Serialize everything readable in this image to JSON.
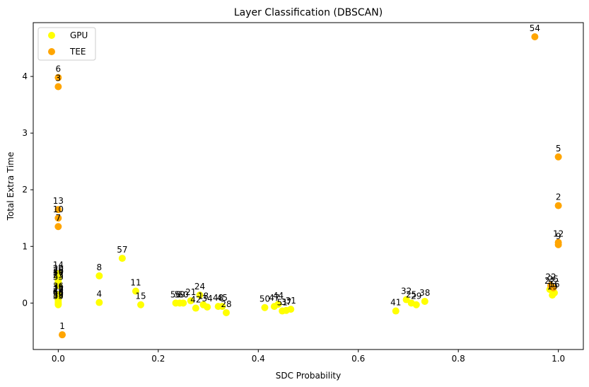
{
  "chart_data": {
    "type": "scatter",
    "title": "Layer Classification (DBSCAN)",
    "xlabel": "SDC Probability",
    "ylabel": "Total Extra Time",
    "xlim": [
      -0.05,
      1.05
    ],
    "ylim": [
      -0.82,
      4.95
    ],
    "xticks": [
      0.0,
      0.2,
      0.4,
      0.6,
      0.8,
      1.0
    ],
    "xtick_labels": [
      "0.0",
      "0.2",
      "0.4",
      "0.6",
      "0.8",
      "1.0"
    ],
    "yticks": [
      0,
      1,
      2,
      3,
      4
    ],
    "ytick_labels": [
      "0",
      "1",
      "2",
      "3",
      "4"
    ],
    "grid": false,
    "legend_position": "top-left",
    "series": [
      {
        "name": "GPU",
        "color": "#ffff00",
        "points": [
          {
            "x": 0.0,
            "y": 0.52,
            "label": "14"
          },
          {
            "x": 0.0,
            "y": 0.46,
            "label": "20"
          },
          {
            "x": 0.0,
            "y": 0.43,
            "label": "26"
          },
          {
            "x": 0.0,
            "y": 0.4,
            "label": "30"
          },
          {
            "x": 0.0,
            "y": 0.37,
            "label": "17"
          },
          {
            "x": 0.0,
            "y": 0.34,
            "label": "23"
          },
          {
            "x": 0.0,
            "y": 0.31,
            "label": "53"
          },
          {
            "x": 0.0,
            "y": 0.15,
            "label": "36"
          },
          {
            "x": 0.0,
            "y": 0.12,
            "label": "35"
          },
          {
            "x": 0.0,
            "y": 0.09,
            "label": "27"
          },
          {
            "x": 0.0,
            "y": 0.07,
            "label": "49"
          },
          {
            "x": 0.0,
            "y": 0.04,
            "label": "46"
          },
          {
            "x": 0.0,
            "y": 0.01,
            "label": "52"
          },
          {
            "x": 0.0,
            "y": -0.01,
            "label": "39"
          },
          {
            "x": 0.0,
            "y": -0.03,
            "label": "55"
          },
          {
            "x": 0.082,
            "y": 0.48,
            "label": "8"
          },
          {
            "x": 0.082,
            "y": 0.01,
            "label": "4"
          },
          {
            "x": 0.128,
            "y": 0.79,
            "label": "57"
          },
          {
            "x": 0.155,
            "y": 0.21,
            "label": "11"
          },
          {
            "x": 0.165,
            "y": -0.03,
            "label": "15"
          },
          {
            "x": 0.235,
            "y": 0.0,
            "label": "56"
          },
          {
            "x": 0.243,
            "y": 0.0,
            "label": "59"
          },
          {
            "x": 0.25,
            "y": 0.0,
            "label": "60"
          },
          {
            "x": 0.265,
            "y": 0.04,
            "label": "21"
          },
          {
            "x": 0.275,
            "y": -0.09,
            "label": "42"
          },
          {
            "x": 0.283,
            "y": 0.14,
            "label": "24"
          },
          {
            "x": 0.29,
            "y": -0.03,
            "label": "18"
          },
          {
            "x": 0.298,
            "y": -0.07,
            "label": "34"
          },
          {
            "x": 0.32,
            "y": -0.06,
            "label": "48"
          },
          {
            "x": 0.328,
            "y": -0.06,
            "label": "45"
          },
          {
            "x": 0.336,
            "y": -0.17,
            "label": "28"
          },
          {
            "x": 0.413,
            "y": -0.08,
            "label": "50"
          },
          {
            "x": 0.432,
            "y": -0.06,
            "label": "47"
          },
          {
            "x": 0.44,
            "y": -0.02,
            "label": "44"
          },
          {
            "x": 0.448,
            "y": -0.14,
            "label": "51"
          },
          {
            "x": 0.456,
            "y": -0.13,
            "label": "37"
          },
          {
            "x": 0.465,
            "y": -0.11,
            "label": "31"
          },
          {
            "x": 0.675,
            "y": -0.14,
            "label": "41"
          },
          {
            "x": 0.696,
            "y": 0.06,
            "label": "32"
          },
          {
            "x": 0.706,
            "y": 0.0,
            "label": "25"
          },
          {
            "x": 0.716,
            "y": -0.03,
            "label": "29"
          },
          {
            "x": 0.733,
            "y": 0.03,
            "label": "38"
          },
          {
            "x": 0.983,
            "y": 0.24,
            "label": "22"
          },
          {
            "x": 0.988,
            "y": 0.14,
            "label": "19"
          },
          {
            "x": 0.992,
            "y": 0.18,
            "label": "16"
          }
        ]
      },
      {
        "name": "TEE",
        "color": "#ffa500",
        "points": [
          {
            "x": 0.0,
            "y": 3.98,
            "label": "6"
          },
          {
            "x": 0.0,
            "y": 3.82,
            "label": "3"
          },
          {
            "x": 0.0,
            "y": 1.65,
            "label": "13"
          },
          {
            "x": 0.0,
            "y": 1.5,
            "label": "10"
          },
          {
            "x": 0.0,
            "y": 1.35,
            "label": "7"
          },
          {
            "x": 0.008,
            "y": -0.56,
            "label": "1"
          },
          {
            "x": 0.953,
            "y": 4.7,
            "label": "54"
          },
          {
            "x": 1.0,
            "y": 2.58,
            "label": "5"
          },
          {
            "x": 1.0,
            "y": 1.72,
            "label": "2"
          },
          {
            "x": 1.0,
            "y": 1.07,
            "label": "12"
          },
          {
            "x": 1.0,
            "y": 1.03,
            "label": "9"
          },
          {
            "x": 0.985,
            "y": 0.31,
            "label": "22"
          },
          {
            "x": 0.99,
            "y": 0.27,
            "label": "25"
          }
        ]
      }
    ]
  }
}
